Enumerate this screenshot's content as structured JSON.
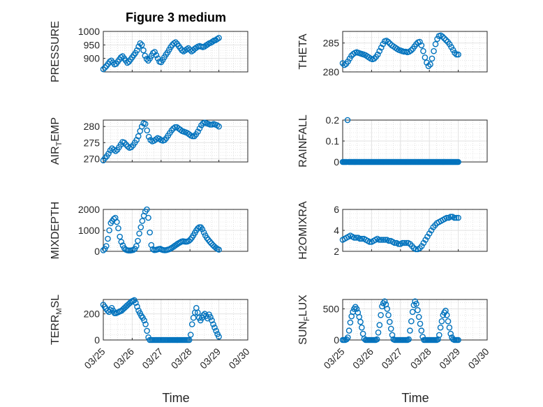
{
  "figure": {
    "title": "Figure 3 medium",
    "marker_color": "#0072BD"
  },
  "chart_data": [
    {
      "type": "scatter",
      "ylabel": "PRESSURE",
      "ylim": [
        850,
        1000
      ],
      "yticks": [
        "900",
        "950",
        "1000"
      ],
      "y": [
        860,
        866,
        872,
        880,
        888,
        892,
        885,
        878,
        880,
        888,
        896,
        904,
        908,
        900,
        892,
        884,
        888,
        896,
        904,
        912,
        920,
        930,
        944,
        956,
        950,
        930,
        910,
        898,
        892,
        900,
        910,
        920,
        924,
        912,
        900,
        888,
        886,
        894,
        904,
        914,
        922,
        932,
        942,
        950,
        956,
        960,
        954,
        946,
        938,
        930,
        926,
        930,
        934,
        938,
        932,
        926,
        930,
        936,
        940,
        944,
        946,
        944,
        942,
        944,
        948,
        952,
        956,
        958,
        962,
        966,
        968,
        972,
        976
      ]
    },
    {
      "type": "scatter",
      "ylabel": "THETA",
      "ylim": [
        280,
        287
      ],
      "yticks": [
        "280",
        "285"
      ],
      "y": [
        281.5,
        281.2,
        281.4,
        281.8,
        282.3,
        282.8,
        283.1,
        283.3,
        283.4,
        283.3,
        283.2,
        283.1,
        283.0,
        282.9,
        282.7,
        282.5,
        282.3,
        282.2,
        282.3,
        282.6,
        283.0,
        283.6,
        284.2,
        284.8,
        285.3,
        285.4,
        285.2,
        284.9,
        284.6,
        284.4,
        284.2,
        284.0,
        283.8,
        283.7,
        283.6,
        283.5,
        283.5,
        283.4,
        283.5,
        283.7,
        284.0,
        284.4,
        284.8,
        285.1,
        285.2,
        284.6,
        283.6,
        282.5,
        281.6,
        281.0,
        281.3,
        282.3,
        283.6,
        284.8,
        285.7,
        286.2,
        286.3,
        286.1,
        285.8,
        285.5,
        285.2,
        284.8,
        284.3,
        283.8,
        283.3,
        283.0,
        283.0
      ]
    },
    {
      "type": "scatter",
      "ylabel": "AIR",
      "ylabel_sub": "T",
      "ylabel_after": "EMP",
      "ylim": [
        269,
        282
      ],
      "yticks": [
        "270",
        "275",
        "280"
      ],
      "y": [
        269.5,
        270.2,
        270.8,
        271.6,
        272.6,
        273.2,
        272.8,
        272.4,
        272.8,
        273.6,
        274.4,
        275.2,
        275.0,
        274.4,
        273.8,
        273.4,
        273.6,
        274.2,
        275.0,
        275.8,
        277.0,
        278.6,
        280.0,
        281.0,
        280.8,
        278.8,
        276.8,
        275.8,
        275.4,
        275.6,
        276.0,
        276.4,
        276.2,
        275.8,
        275.6,
        275.8,
        276.4,
        277.2,
        278.0,
        278.8,
        279.4,
        279.8,
        279.8,
        279.4,
        279.0,
        278.6,
        278.4,
        278.2,
        278.0,
        277.6,
        277.2,
        277.0,
        277.0,
        277.6,
        278.4,
        279.4,
        280.4,
        281.0,
        281.2,
        281.0,
        280.8,
        280.6,
        280.6,
        280.8,
        280.6,
        280.4,
        280.0
      ]
    },
    {
      "type": "scatter",
      "ylabel": "RAINFALL",
      "ylim": [
        0,
        0.2
      ],
      "yticks": [
        "0",
        "0.1",
        "0.2"
      ],
      "y": [
        0,
        0,
        0,
        0,
        0,
        0.2,
        0,
        0,
        0,
        0,
        0,
        0,
        0,
        0,
        0,
        0,
        0,
        0,
        0,
        0,
        0,
        0,
        0,
        0,
        0,
        0,
        0,
        0,
        0,
        0,
        0,
        0,
        0,
        0,
        0,
        0,
        0,
        0,
        0,
        0,
        0,
        0,
        0,
        0,
        0,
        0,
        0,
        0,
        0,
        0,
        0,
        0,
        0,
        0,
        0,
        0,
        0,
        0,
        0,
        0,
        0,
        0,
        0,
        0,
        0,
        0,
        0,
        0,
        0,
        0,
        0,
        0,
        0,
        0,
        0,
        0,
        0,
        0,
        0,
        0,
        0,
        0,
        0,
        0,
        0,
        0,
        0,
        0,
        0,
        0,
        0,
        0,
        0,
        0,
        0,
        0,
        0,
        0,
        0,
        0,
        0,
        0,
        0,
        0,
        0,
        0,
        0,
        0,
        0,
        0,
        0,
        0,
        0,
        0,
        0,
        0,
        0,
        0,
        0,
        0
      ]
    },
    {
      "type": "scatter",
      "ylabel": "MIXDEPTH",
      "ylim": [
        0,
        2000
      ],
      "yticks": [
        "0",
        "1000",
        "2000"
      ],
      "y": [
        50,
        120,
        250,
        600,
        1000,
        1350,
        1450,
        1550,
        1600,
        1400,
        1100,
        700,
        450,
        280,
        150,
        80,
        50,
        40,
        40,
        50,
        70,
        120,
        250,
        500,
        850,
        1150,
        1450,
        1700,
        1900,
        2000,
        1600,
        900,
        300,
        100,
        60,
        70,
        90,
        110,
        120,
        80,
        60,
        50,
        60,
        80,
        100,
        140,
        180,
        230,
        280,
        330,
        380,
        420,
        460,
        480,
        470,
        460,
        470,
        500,
        560,
        650,
        760,
        880,
        1000,
        1100,
        1150,
        1150,
        1050,
        900,
        760,
        640,
        550,
        460,
        380,
        300,
        230,
        170,
        120,
        80
      ]
    },
    {
      "type": "scatter",
      "ylabel": "H2OMIXRA",
      "ylim": [
        2,
        6
      ],
      "yticks": [
        "2",
        "4",
        "6"
      ],
      "y": [
        3.1,
        3.2,
        3.3,
        3.4,
        3.5,
        3.4,
        3.3,
        3.3,
        3.3,
        3.2,
        3.2,
        3.2,
        3.1,
        3.0,
        2.9,
        2.9,
        3.0,
        3.1,
        3.2,
        3.1,
        3.1,
        3.1,
        3.1,
        3.1,
        3.0,
        3.0,
        2.9,
        2.8,
        2.8,
        2.7,
        2.7,
        2.8,
        2.8,
        2.8,
        2.8,
        2.7,
        2.5,
        2.3,
        2.2,
        2.2,
        2.3,
        2.5,
        2.8,
        3.1,
        3.4,
        3.7,
        4.0,
        4.3,
        4.5,
        4.7,
        4.8,
        4.9,
        5.0,
        5.1,
        5.2,
        5.2,
        5.3,
        5.3,
        5.2,
        5.2,
        5.2
      ]
    },
    {
      "type": "scatter",
      "ylabel": "TERR",
      "ylabel_sub": "M",
      "ylabel_after": "SL",
      "ylim": [
        0,
        310
      ],
      "yticks": [
        "0",
        "200"
      ],
      "y": [
        270,
        255,
        240,
        225,
        215,
        230,
        245,
        225,
        205,
        205,
        210,
        215,
        220,
        225,
        235,
        245,
        255,
        265,
        275,
        285,
        295,
        300,
        305,
        285,
        255,
        225,
        205,
        185,
        170,
        150,
        120,
        70,
        20,
        0,
        0,
        0,
        0,
        0,
        0,
        0,
        0,
        0,
        0,
        0,
        0,
        0,
        0,
        0,
        0,
        0,
        0,
        0,
        0,
        0,
        0,
        0,
        0,
        0,
        0,
        0,
        0,
        0,
        40,
        120,
        170,
        210,
        245,
        210,
        170,
        150,
        170,
        190,
        200,
        185,
        165,
        195,
        175,
        150,
        120,
        95,
        70,
        45,
        25
      ]
    },
    {
      "type": "scatter",
      "ylabel": "SUN",
      "ylabel_sub": "F",
      "ylabel_after": "LUX",
      "ylim": [
        0,
        650
      ],
      "yticks": [
        "0",
        "500"
      ],
      "y": [
        0,
        0,
        0,
        10,
        40,
        150,
        280,
        380,
        450,
        500,
        530,
        500,
        440,
        370,
        290,
        200,
        100,
        20,
        0,
        0,
        0,
        0,
        0,
        0,
        0,
        0,
        0,
        10,
        120,
        240,
        400,
        540,
        590,
        620,
        570,
        500,
        400,
        290,
        180,
        80,
        10,
        0,
        0,
        0,
        0,
        0,
        0,
        0,
        0,
        0,
        0,
        0,
        10,
        150,
        300,
        450,
        560,
        620,
        580,
        480,
        370,
        260,
        150,
        50,
        0,
        0,
        0,
        0,
        0,
        0,
        0,
        0,
        0,
        0,
        0,
        10,
        80,
        200,
        300,
        400,
        440,
        470,
        400,
        300,
        200,
        100,
        40,
        10,
        0,
        0,
        0,
        0
      ]
    }
  ],
  "axes": {
    "xticks": [
      "03/25",
      "03/26",
      "03/27",
      "03/28",
      "03/29",
      "03/30"
    ],
    "xlabel": "Time"
  }
}
